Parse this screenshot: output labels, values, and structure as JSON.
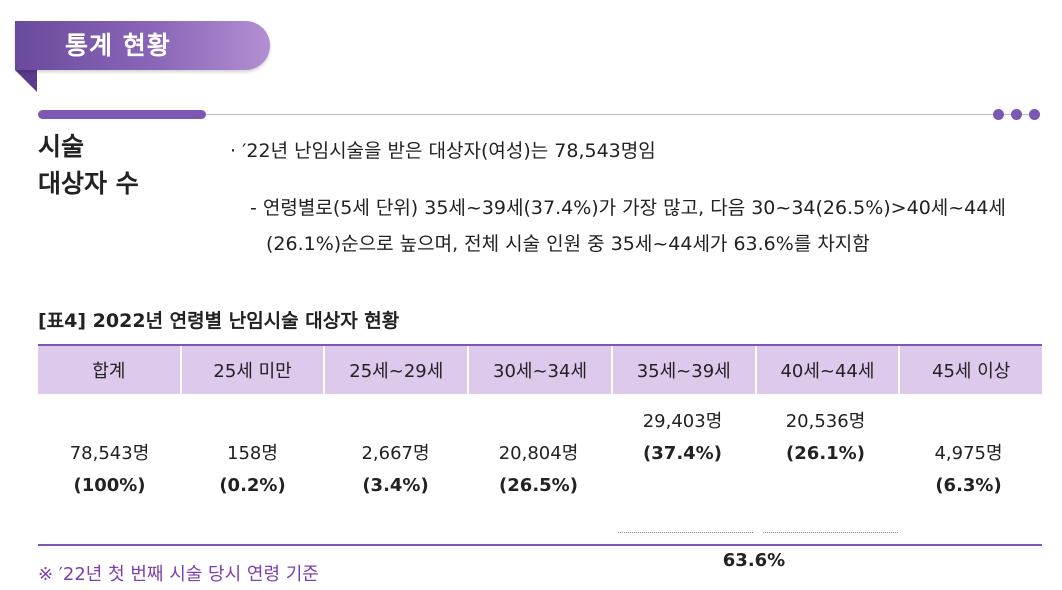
{
  "header": {
    "title": "통계 현황"
  },
  "section": {
    "label_line1": "시술",
    "label_line2": "대상자 수",
    "bullet": "′22년 난임시술을 받은 대상자(여성)는 78,543명임",
    "sub_line1": "- 연령별로(5세 단위) 35세~39세(37.4%)가 가장 많고, 다음 30~34(26.5%)>40세~44세",
    "sub_line2": "(26.1%)순으로 높으며, 전체 시술 인원 중 35세~44세가 63.6%를 차지함"
  },
  "table": {
    "title": "[표4] 2022년 연령별 난임시술 대상자 현황",
    "headers": [
      "합계",
      "25세 미만",
      "25세~29세",
      "30세~34세",
      "35세~39세",
      "40세~44세",
      "45세 이상"
    ],
    "rows": [
      {
        "value": "78,543명",
        "percent": "(100%)"
      },
      {
        "value": "158명",
        "percent": "(0.2%)"
      },
      {
        "value": "2,667명",
        "percent": "(3.4%)"
      },
      {
        "value": "20,804명",
        "percent": "(26.5%)"
      },
      {
        "value": "29,403명",
        "percent": "(37.4%)"
      },
      {
        "value": "20,536명",
        "percent": "(26.1%)"
      },
      {
        "value": "4,975명",
        "percent": "(6.3%)"
      }
    ],
    "combined": "63.6%"
  },
  "note": "※ ′22년 첫 번째 시술 당시 연령 기준",
  "colors": {
    "accent": "#7e57b4",
    "header_bg": "#dcc9ec",
    "note": "#7e3fb0"
  }
}
